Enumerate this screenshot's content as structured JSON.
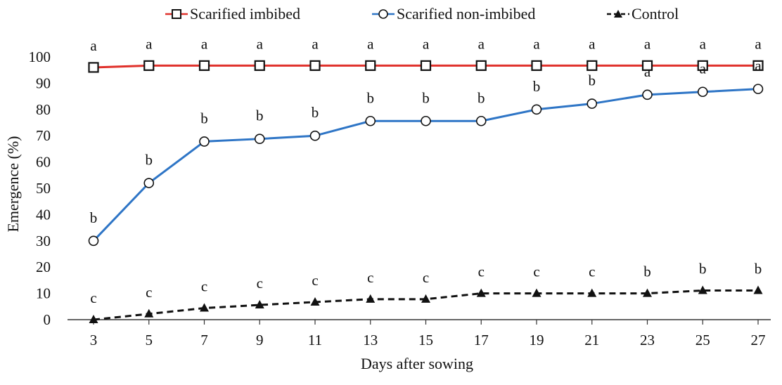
{
  "chart_data": {
    "type": "line",
    "xlabel": "Days after sowing",
    "ylabel": "Emergence (%)",
    "ylim": [
      0,
      100
    ],
    "ytick_step": 10,
    "grid": false,
    "legend_position": "top",
    "x": [
      3,
      5,
      7,
      9,
      11,
      13,
      15,
      17,
      19,
      21,
      23,
      25,
      27
    ],
    "series": [
      {
        "name": "Scarified imbibed",
        "color": "#e0312b",
        "marker": "square",
        "dash": "solid",
        "values": [
          96,
          96.7,
          96.7,
          96.7,
          96.7,
          96.7,
          96.7,
          96.7,
          96.7,
          96.7,
          96.7,
          96.7,
          96.7
        ],
        "letters": [
          "a",
          "a",
          "a",
          "a",
          "a",
          "a",
          "a",
          "a",
          "a",
          "a",
          "a",
          "a",
          "a"
        ]
      },
      {
        "name": "Scarified non-imbibed",
        "color": "#2e75c6",
        "marker": "circle",
        "dash": "solid",
        "values": [
          30,
          52,
          67.8,
          68.8,
          70,
          75.6,
          75.6,
          75.6,
          80,
          82.2,
          85.6,
          86.7,
          87.8
        ],
        "letters": [
          "b",
          "b",
          "b",
          "b",
          "b",
          "b",
          "b",
          "b",
          "b",
          "b",
          "a",
          "a",
          "a"
        ]
      },
      {
        "name": "Control",
        "color": "#111111",
        "marker": "triangle",
        "dash": "dashed",
        "values": [
          0,
          2.2,
          4.4,
          5.6,
          6.7,
          7.8,
          7.8,
          10,
          10,
          10,
          10,
          11.1,
          11.1
        ],
        "letters": [
          "c",
          "c",
          "c",
          "c",
          "c",
          "c",
          "c",
          "c",
          "c",
          "c",
          "b",
          "b",
          "b"
        ]
      }
    ]
  }
}
